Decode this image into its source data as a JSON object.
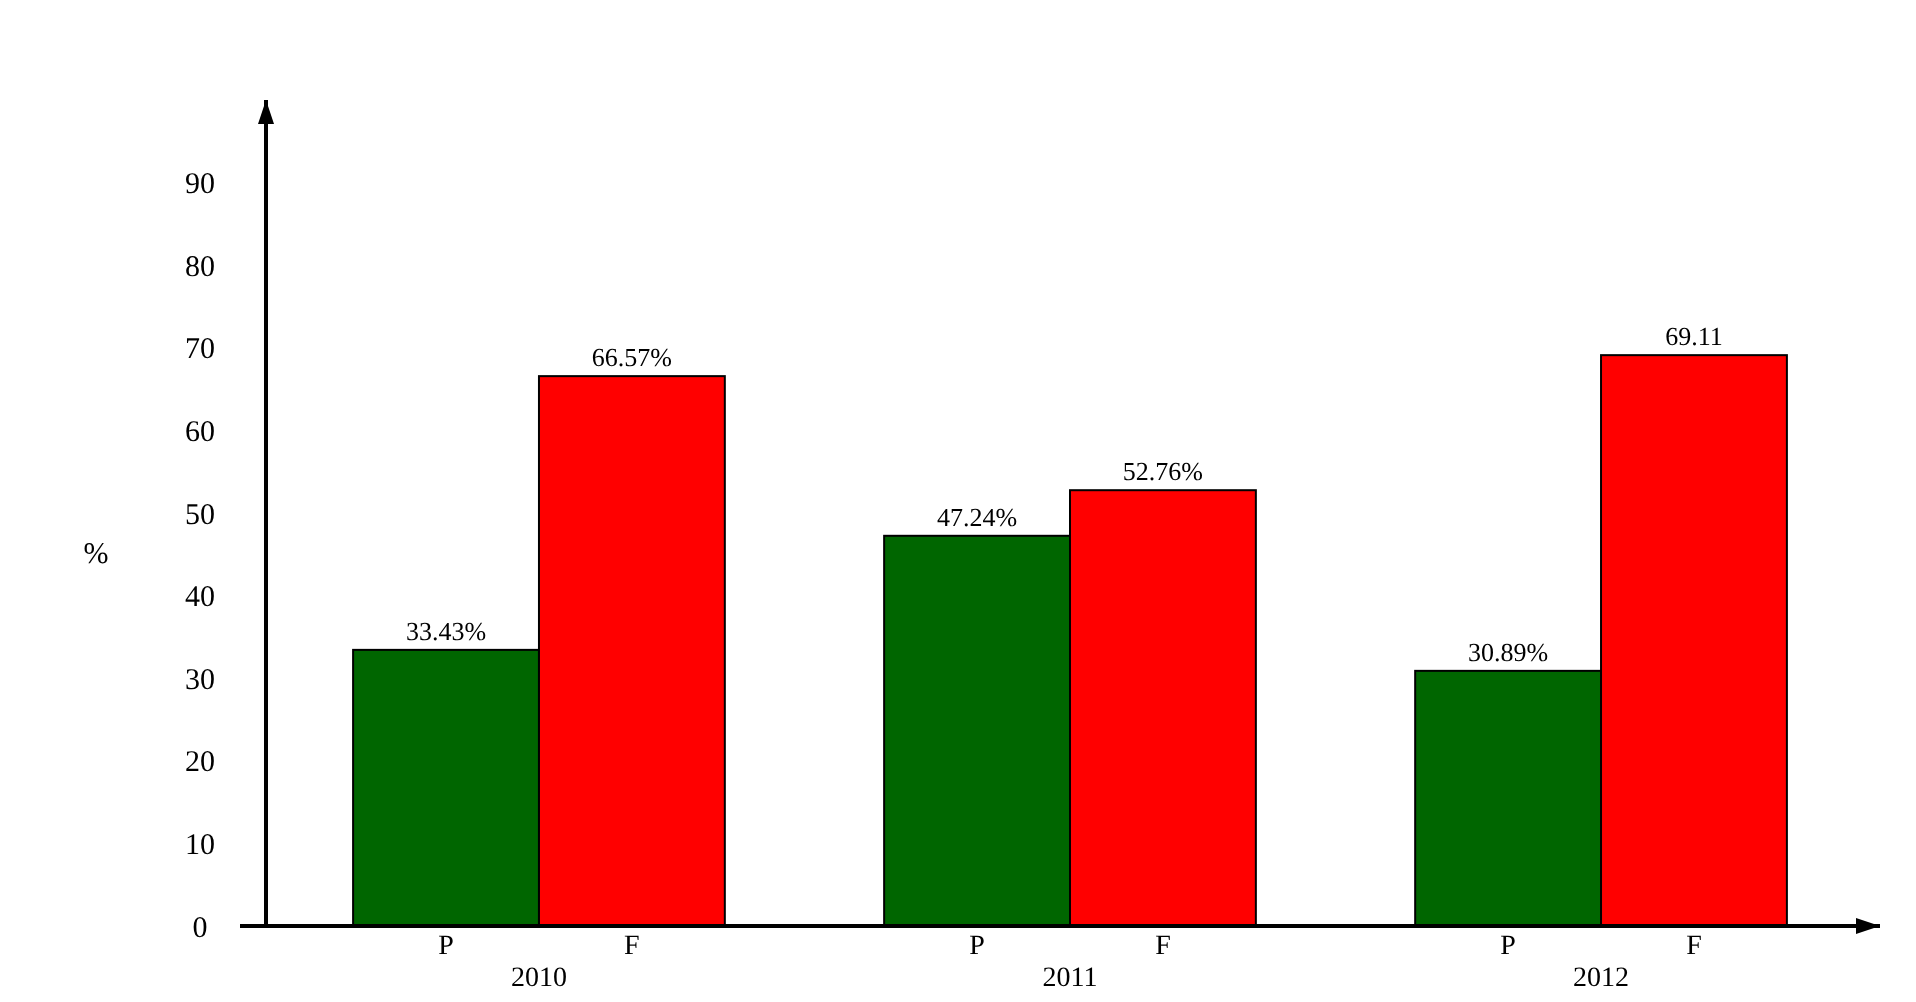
{
  "chart_data": {
    "type": "bar",
    "ylabel": "%",
    "categories": [
      "2010",
      "2011",
      "2012"
    ],
    "series": [
      {
        "name": "P",
        "color": "#006600",
        "values": [
          33.43,
          47.24,
          30.89
        ],
        "value_labels": [
          "33.43%",
          "47.24%",
          "30.89%"
        ]
      },
      {
        "name": "F",
        "color": "#ff0000",
        "values": [
          66.57,
          52.76,
          69.11
        ],
        "value_labels": [
          "66.57%",
          "52.76%",
          "69.11"
        ]
      }
    ],
    "ylim": [
      0,
      100
    ],
    "yticks": [
      0,
      10,
      20,
      30,
      40,
      50,
      60,
      70,
      80,
      90
    ],
    "grid": false,
    "legend": false
  }
}
